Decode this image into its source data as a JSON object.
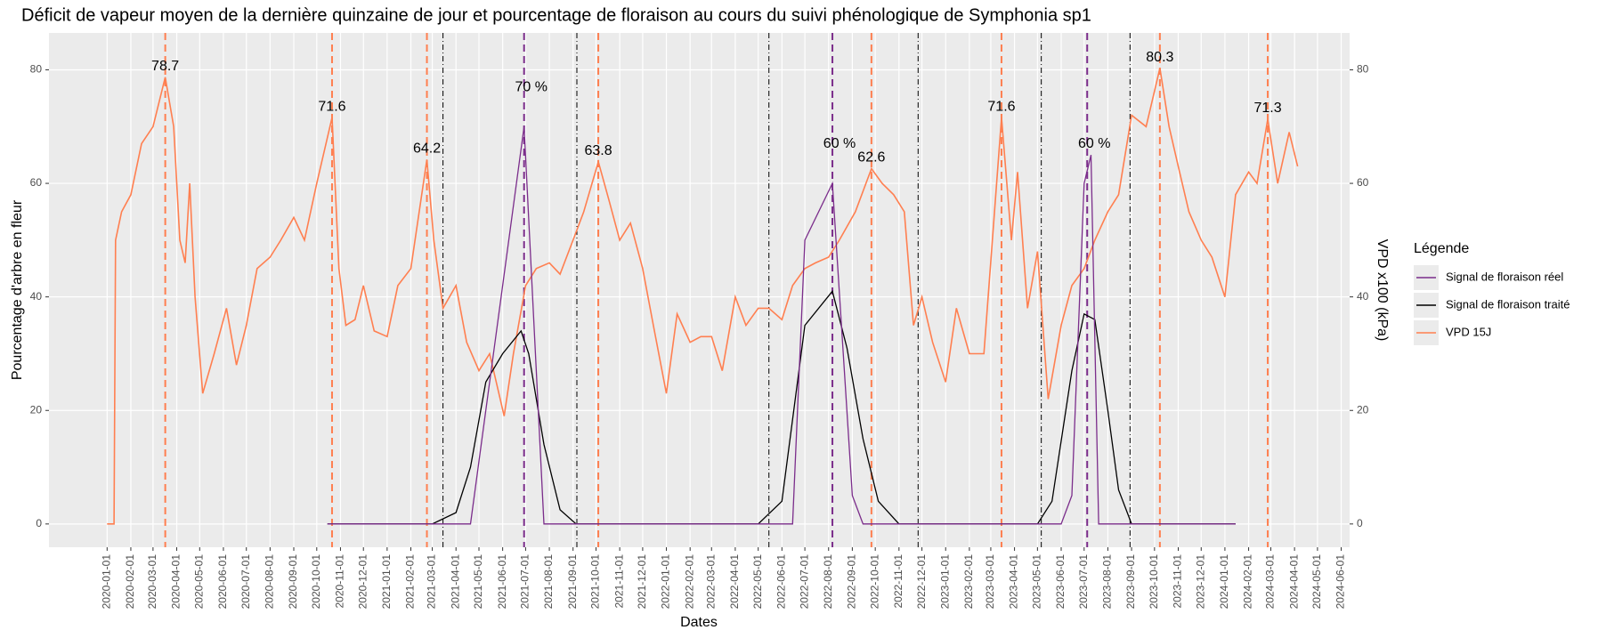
{
  "chart_data": {
    "type": "line",
    "title": "Déficit de vapeur moyen de la dernière quinzaine de jour et pourcentage de floraison au cours du suivi phénologique de Symphonia sp1",
    "x_label": "Dates",
    "y_label": "Pourcentage d'arbre en fleur",
    "y2_label": "VPD x100 (kPa)",
    "legend_title": "Légende",
    "legend_position": "right",
    "grid": true,
    "xlim": [
      "2019-10-17",
      "2024-06-12"
    ],
    "xticks": [
      "2020-01-01",
      "2020-02-01",
      "2020-03-01",
      "2020-04-01",
      "2020-05-01",
      "2020-06-01",
      "2020-07-01",
      "2020-08-01",
      "2020-09-01",
      "2020-10-01",
      "2020-11-01",
      "2020-12-01",
      "2021-01-01",
      "2021-02-01",
      "2021-03-01",
      "2021-04-01",
      "2021-05-01",
      "2021-06-01",
      "2021-07-01",
      "2021-08-01",
      "2021-09-01",
      "2021-10-01",
      "2021-11-01",
      "2021-12-01",
      "2022-01-01",
      "2022-02-01",
      "2022-03-01",
      "2022-04-01",
      "2022-05-01",
      "2022-06-01",
      "2022-07-01",
      "2022-08-01",
      "2022-09-01",
      "2022-10-01",
      "2022-11-01",
      "2022-12-01",
      "2023-01-01",
      "2023-02-01",
      "2023-03-01",
      "2023-04-01",
      "2023-05-01",
      "2023-06-01",
      "2023-07-01",
      "2023-08-01",
      "2023-09-01",
      "2023-10-01",
      "2023-11-01",
      "2023-12-01",
      "2024-01-01",
      "2024-02-01",
      "2024-03-01",
      "2024-04-01",
      "2024-05-01",
      "2024-06-01"
    ],
    "ylim": [
      -4.1,
      86.5
    ],
    "yticks": [
      0,
      20,
      40,
      60,
      80
    ],
    "y2lim": [
      -4.1,
      86.5
    ],
    "y2ticks": [
      0,
      20,
      40,
      60,
      80
    ],
    "series": [
      {
        "name": "Signal de floraison réel",
        "color": "#7b2d8b",
        "x": [
          "2020-10-15",
          "2021-04-20",
          "2021-06-29",
          "2021-07-25",
          "2022-06-15",
          "2022-07-01",
          "2022-08-06",
          "2022-09-01",
          "2022-09-15",
          "2023-06-01",
          "2023-06-15",
          "2023-07-01",
          "2023-07-10",
          "2023-07-20",
          "2024-01-15"
        ],
        "values": [
          0,
          0,
          70,
          0,
          0,
          50,
          60,
          5,
          0,
          0,
          5,
          60,
          65,
          0,
          0
        ]
      },
      {
        "name": "Signal de floraison traité",
        "color": "#000000",
        "x": [
          "2020-10-15",
          "2021-03-01",
          "2021-04-01",
          "2021-04-20",
          "2021-05-10",
          "2021-06-01",
          "2021-06-25",
          "2021-07-05",
          "2021-07-25",
          "2021-08-15",
          "2021-09-05",
          "2022-05-01",
          "2022-06-01",
          "2022-07-01",
          "2022-08-06",
          "2022-08-25",
          "2022-09-15",
          "2022-10-05",
          "2022-11-01",
          "2023-05-01",
          "2023-05-20",
          "2023-06-15",
          "2023-07-01",
          "2023-07-15",
          "2023-08-01",
          "2023-08-15",
          "2023-09-01",
          "2024-01-15"
        ],
        "values": [
          0,
          0,
          2,
          10,
          25,
          30,
          34,
          30,
          14,
          2.5,
          0,
          0,
          4,
          35,
          41,
          31,
          15,
          4,
          0,
          0,
          4,
          27,
          37,
          36,
          20,
          6,
          0,
          0
        ]
      },
      {
        "name": "VPD 15J",
        "color": "#ff7f50",
        "axis": "y2",
        "x": [
          "2020-01-01",
          "2020-01-10",
          "2020-01-12",
          "2020-01-20",
          "2020-02-01",
          "2020-02-15",
          "2020-03-01",
          "2020-03-17",
          "2020-03-28",
          "2020-04-05",
          "2020-04-12",
          "2020-04-18",
          "2020-04-25",
          "2020-05-05",
          "2020-05-20",
          "2020-06-05",
          "2020-06-18",
          "2020-07-01",
          "2020-07-15",
          "2020-08-01",
          "2020-08-15",
          "2020-09-01",
          "2020-09-15",
          "2020-10-01",
          "2020-10-21",
          "2020-10-30",
          "2020-11-08",
          "2020-11-20",
          "2020-12-01",
          "2020-12-15",
          "2021-01-01",
          "2021-01-15",
          "2021-02-01",
          "2021-02-22",
          "2021-03-03",
          "2021-03-15",
          "2021-04-01",
          "2021-04-15",
          "2021-05-01",
          "2021-05-15",
          "2021-06-03",
          "2021-06-15",
          "2021-07-01",
          "2021-07-15",
          "2021-08-01",
          "2021-08-15",
          "2021-09-01",
          "2021-09-15",
          "2021-10-04",
          "2021-10-18",
          "2021-11-01",
          "2021-11-15",
          "2021-12-01",
          "2021-12-15",
          "2022-01-01",
          "2022-01-15",
          "2022-02-01",
          "2022-02-15",
          "2022-03-01",
          "2022-03-15",
          "2022-04-01",
          "2022-04-15",
          "2022-05-01",
          "2022-05-15",
          "2022-06-01",
          "2022-06-15",
          "2022-07-01",
          "2022-07-15",
          "2022-08-01",
          "2022-08-15",
          "2022-09-05",
          "2022-09-26",
          "2022-10-10",
          "2022-10-25",
          "2022-11-08",
          "2022-11-20",
          "2022-12-01",
          "2022-12-15",
          "2023-01-01",
          "2023-01-15",
          "2023-02-01",
          "2023-02-20",
          "2023-03-15",
          "2023-03-28",
          "2023-04-05",
          "2023-04-18",
          "2023-05-01",
          "2023-05-15",
          "2023-06-01",
          "2023-06-15",
          "2023-07-01",
          "2023-07-15",
          "2023-08-01",
          "2023-08-15",
          "2023-09-01",
          "2023-09-20",
          "2023-10-08",
          "2023-10-20",
          "2023-11-01",
          "2023-11-15",
          "2023-12-01",
          "2023-12-15",
          "2024-01-01",
          "2024-01-15",
          "2024-02-01",
          "2024-02-12",
          "2024-02-26",
          "2024-03-10",
          "2024-03-25",
          "2024-04-05"
        ],
        "values": [
          0,
          0,
          50,
          55,
          58,
          67,
          70,
          78.7,
          70,
          50,
          46,
          60,
          40,
          23,
          30,
          38,
          28,
          35,
          45,
          47,
          50,
          54,
          50,
          60,
          71.6,
          45,
          35,
          36,
          42,
          34,
          33,
          42,
          45,
          64.2,
          50,
          38,
          42,
          32,
          27,
          30,
          19,
          30,
          42,
          45,
          46,
          44,
          50,
          55,
          63.8,
          57,
          50,
          53,
          45,
          35,
          23,
          37,
          32,
          33,
          33,
          27,
          40,
          35,
          38,
          38,
          36,
          42,
          45,
          46,
          47,
          50,
          55,
          62.6,
          60,
          58,
          55,
          35,
          40,
          32,
          25,
          38,
          30,
          30,
          71.6,
          50,
          62,
          38,
          48,
          22,
          35,
          42,
          45,
          50,
          55,
          58,
          72,
          70,
          80.3,
          70,
          63,
          55,
          50,
          47,
          40,
          58,
          62,
          60,
          71.3,
          60,
          69,
          63
        ]
      }
    ],
    "vpd_peaks": [
      {
        "x": "2020-03-17",
        "value": 78.7
      },
      {
        "x": "2020-10-21",
        "value": 71.6
      },
      {
        "x": "2021-02-22",
        "value": 64.2
      },
      {
        "x": "2021-10-04",
        "value": 63.8
      },
      {
        "x": "2022-09-26",
        "value": 62.6
      },
      {
        "x": "2023-03-15",
        "value": 71.6
      },
      {
        "x": "2023-10-08",
        "value": 80.3
      },
      {
        "x": "2024-02-26",
        "value": 71.3
      }
    ],
    "flowering_peaks": [
      {
        "x": "2021-06-29",
        "value": 70,
        "label": "70 %"
      },
      {
        "x": "2022-08-06",
        "value": 60,
        "label": "60 %"
      },
      {
        "x": "2023-07-05",
        "value": 60,
        "label": "60 %"
      }
    ],
    "period_lines": [
      "2021-03-15",
      "2021-09-06",
      "2022-05-15",
      "2022-11-26",
      "2023-05-06",
      "2023-08-30"
    ]
  }
}
